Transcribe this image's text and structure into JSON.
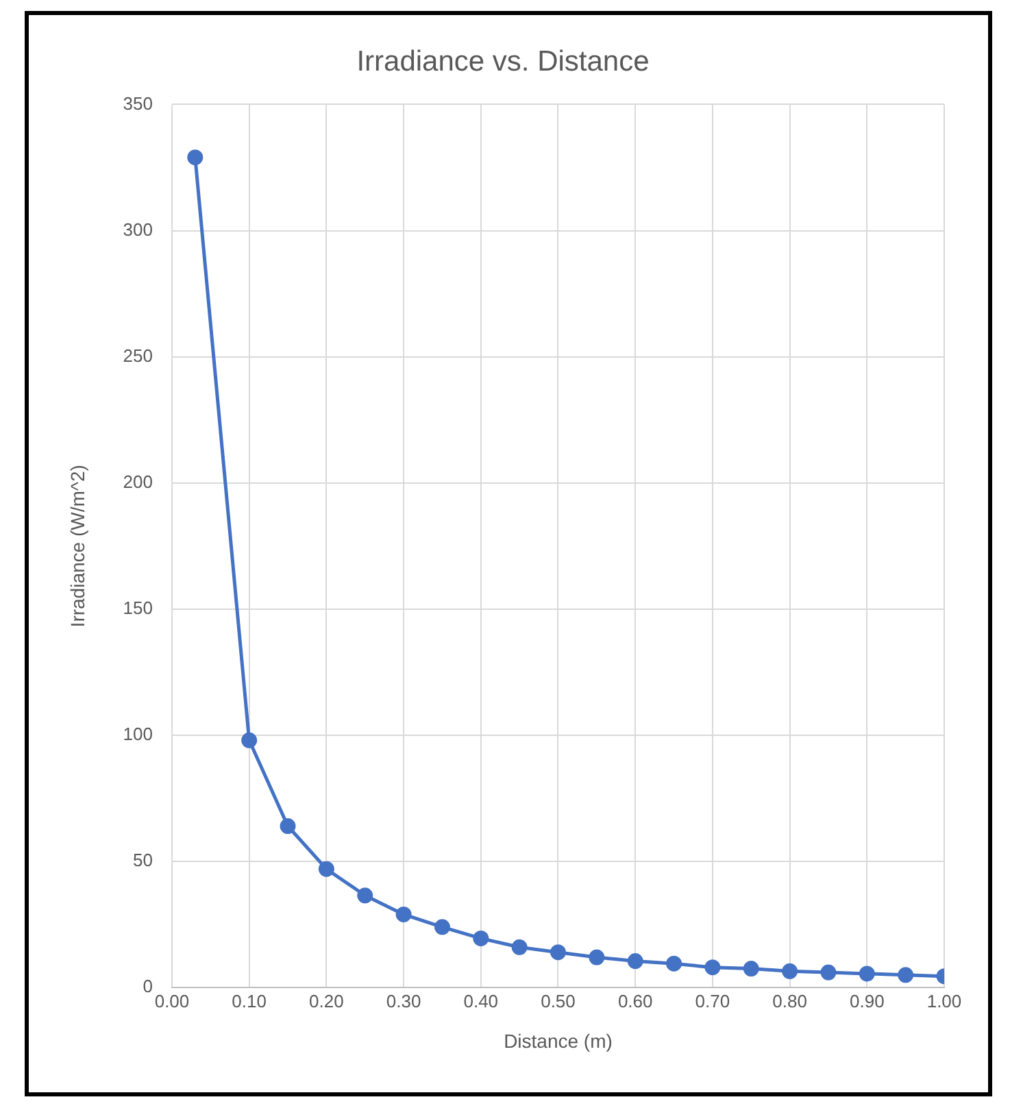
{
  "chart_data": {
    "type": "line",
    "title": "Irradiance vs. Distance",
    "xlabel": "Distance (m)",
    "ylabel": "Irradiance (W/m^2)",
    "x": [
      0.03,
      0.1,
      0.15,
      0.2,
      0.25,
      0.3,
      0.35,
      0.4,
      0.45,
      0.5,
      0.55,
      0.6,
      0.65,
      0.7,
      0.75,
      0.8,
      0.85,
      0.9,
      0.95,
      1.0
    ],
    "series": [
      {
        "color": "#4472c4",
        "values": [
          329,
          98,
          64,
          47,
          36.5,
          29,
          24,
          19.5,
          16,
          14,
          12,
          10.5,
          9.5,
          8,
          7.5,
          6.5,
          6,
          5.5,
          5,
          4.5
        ]
      }
    ],
    "xlim": [
      0,
      1
    ],
    "xticks": [
      {
        "value": 0,
        "label": "0.00"
      },
      {
        "value": 0.1,
        "label": "0.10"
      },
      {
        "value": 0.2,
        "label": "0.20"
      },
      {
        "value": 0.3,
        "label": "0.30"
      },
      {
        "value": 0.4,
        "label": "0.40"
      },
      {
        "value": 0.5,
        "label": "0.50"
      },
      {
        "value": 0.6,
        "label": "0.60"
      },
      {
        "value": 0.7,
        "label": "0.70"
      },
      {
        "value": 0.8,
        "label": "0.80"
      },
      {
        "value": 0.9,
        "label": "0.90"
      },
      {
        "value": 1,
        "label": "1.00"
      }
    ],
    "ylim": [
      0,
      350
    ],
    "yticks": [
      0,
      50,
      100,
      150,
      200,
      250,
      300,
      350
    ],
    "grid": true,
    "legend": false,
    "marker": "circle",
    "line_style": "solid"
  }
}
